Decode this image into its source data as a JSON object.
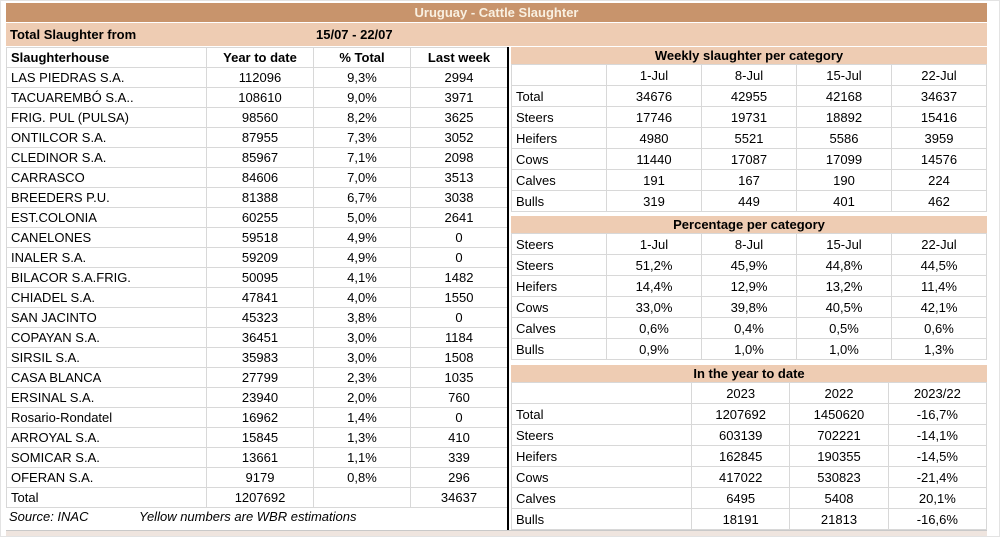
{
  "title": "Uruguay - Cattle Slaughter",
  "subheader": {
    "label": "Total Slaughter from",
    "period": "15/07 - 22/07"
  },
  "left_table": {
    "columns": [
      "Slaughterhouse",
      "Year to date",
      "% Total",
      "Last week"
    ],
    "rows": [
      [
        "LAS PIEDRAS S.A.",
        "112096",
        "9,3%",
        "2994"
      ],
      [
        "TACUAREMBÓ S.A..",
        "108610",
        "9,0%",
        "3971"
      ],
      [
        "FRIG. PUL (PULSA)",
        "98560",
        "8,2%",
        "3625"
      ],
      [
        "ONTILCOR S.A.",
        "87955",
        "7,3%",
        "3052"
      ],
      [
        "CLEDINOR S.A.",
        "85967",
        "7,1%",
        "2098"
      ],
      [
        "CARRASCO",
        "84606",
        "7,0%",
        "3513"
      ],
      [
        "BREEDERS P.U.",
        "81388",
        "6,7%",
        "3038"
      ],
      [
        "EST.COLONIA",
        "60255",
        "5,0%",
        "2641"
      ],
      [
        "CANELONES",
        "59518",
        "4,9%",
        "0"
      ],
      [
        "INALER S.A.",
        "59209",
        "4,9%",
        "0"
      ],
      [
        "BILACOR S.A.FRIG.",
        "50095",
        "4,1%",
        "1482"
      ],
      [
        "CHIADEL S.A.",
        "47841",
        "4,0%",
        "1550"
      ],
      [
        "SAN JACINTO",
        "45323",
        "3,8%",
        "0"
      ],
      [
        "COPAYAN S.A.",
        "36451",
        "3,0%",
        "1184"
      ],
      [
        "SIRSIL S.A.",
        "35983",
        "3,0%",
        "1508"
      ],
      [
        "CASA BLANCA",
        "27799",
        "2,3%",
        "1035"
      ],
      [
        "ERSINAL S.A.",
        "23940",
        "2,0%",
        "760"
      ],
      [
        "Rosario-Rondatel",
        "16962",
        "1,4%",
        "0"
      ],
      [
        "ARROYAL S.A.",
        "15845",
        "1,3%",
        "410"
      ],
      [
        "SOMICAR S.A.",
        "13661",
        "1,1%",
        "339"
      ],
      [
        "OFERAN S.A.",
        "9179",
        "0,8%",
        "296"
      ]
    ],
    "total": [
      "Total",
      "1207692",
      "",
      "34637"
    ]
  },
  "footer": {
    "source": "Source: INAC",
    "note": "Yellow numbers are WBR estimations"
  },
  "weekly": {
    "title": "Weekly slaughter per category",
    "columns": [
      "",
      "1-Jul",
      "8-Jul",
      "15-Jul",
      "22-Jul"
    ],
    "rows": [
      [
        "Total",
        "34676",
        "42955",
        "42168",
        "34637"
      ],
      [
        "Steers",
        "17746",
        "19731",
        "18892",
        "15416"
      ],
      [
        "Heifers",
        "4980",
        "5521",
        "5586",
        "3959"
      ],
      [
        "Cows",
        "11440",
        "17087",
        "17099",
        "14576"
      ],
      [
        "Calves",
        "191",
        "167",
        "190",
        "224"
      ],
      [
        "Bulls",
        "319",
        "449",
        "401",
        "462"
      ]
    ]
  },
  "percentage": {
    "title": "Percentage per category",
    "columns": [
      "Steers",
      "1-Jul",
      "8-Jul",
      "15-Jul",
      "22-Jul"
    ],
    "rows": [
      [
        "Steers",
        "51,2%",
        "45,9%",
        "44,8%",
        "44,5%"
      ],
      [
        "Heifers",
        "14,4%",
        "12,9%",
        "13,2%",
        "11,4%"
      ],
      [
        "Cows",
        "33,0%",
        "39,8%",
        "40,5%",
        "42,1%"
      ],
      [
        "Calves",
        "0,6%",
        "0,4%",
        "0,5%",
        "0,6%"
      ],
      [
        "Bulls",
        "0,9%",
        "1,0%",
        "1,0%",
        "1,3%"
      ]
    ]
  },
  "ytd": {
    "title": "In the year to date",
    "columns": [
      "",
      "2023",
      "2022",
      "2023/22"
    ],
    "rows": [
      [
        "Total",
        "1207692",
        "1450620",
        "-16,7%"
      ],
      [
        "Steers",
        "603139",
        "702221",
        "-14,1%"
      ],
      [
        "Heifers",
        "162845",
        "190355",
        "-14,5%"
      ],
      [
        "Cows",
        "417022",
        "530823",
        "-21,4%"
      ],
      [
        "Calves",
        "6495",
        "5408",
        "20,1%"
      ],
      [
        "Bulls",
        "18191",
        "21813",
        "-16,6%"
      ]
    ]
  },
  "colors": {
    "titlebar_bg": "#c8946c",
    "titlebar_text": "#f9f0e1",
    "section_bg": "#eeccb3",
    "grid_line": "#d8d8d8",
    "divider": "#000000"
  }
}
